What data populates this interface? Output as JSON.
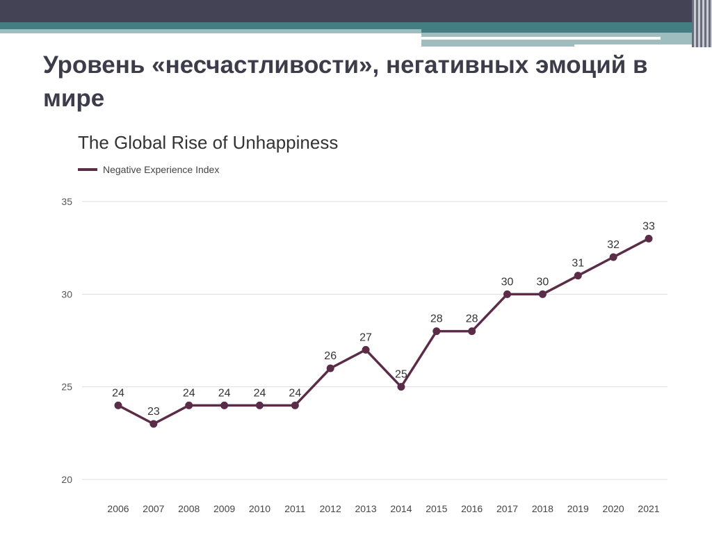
{
  "slide": {
    "title": "Уровень «несчастливости», негативных эмоций в мире"
  },
  "chart_data": {
    "type": "line",
    "title": "The Global Rise of Unhappiness",
    "x": [
      2006,
      2007,
      2008,
      2009,
      2010,
      2011,
      2012,
      2013,
      2014,
      2015,
      2016,
      2017,
      2018,
      2019,
      2020,
      2021
    ],
    "series": [
      {
        "name": "Negative Experience Index",
        "values": [
          24,
          23,
          24,
          24,
          24,
          24,
          26,
          27,
          25,
          28,
          28,
          30,
          30,
          31,
          32,
          33
        ],
        "color": "#5b2c47"
      }
    ],
    "yticks": [
      20,
      25,
      30,
      35
    ],
    "ylim": [
      20,
      35
    ],
    "grid": true,
    "legend": "top-left",
    "data_labels": true
  }
}
